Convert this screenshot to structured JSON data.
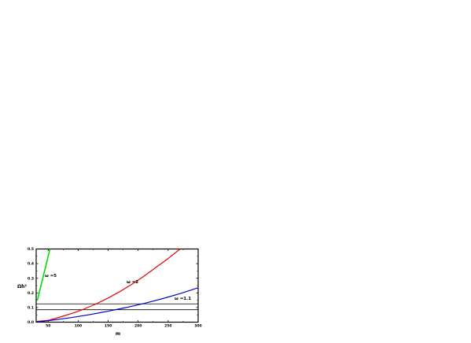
{
  "chart_data": {
    "type": "line",
    "title": "",
    "xlabel": "m",
    "ylabel": "Ωh²",
    "xlim": [
      30,
      300
    ],
    "ylim": [
      0.0,
      0.5
    ],
    "xticks": [
      50,
      100,
      150,
      200,
      250,
      300
    ],
    "xtick_labels": [
      "50",
      "100",
      "150",
      "200",
      "250",
      "300"
    ],
    "yticks": [
      0.0,
      0.1,
      0.2,
      0.3,
      0.4,
      0.5
    ],
    "ytick_labels": [
      "0.0",
      "0.1",
      "0.2",
      "0.3",
      "0.4",
      "0.5"
    ],
    "grid": false,
    "series": [
      {
        "annotation": "ω =5",
        "color": "#00dd00",
        "x": [
          32,
          35,
          38,
          41,
          44,
          47,
          50,
          53
        ],
        "y": [
          0.15,
          0.2,
          0.25,
          0.3,
          0.35,
          0.4,
          0.45,
          0.5
        ]
      },
      {
        "annotation": "ω =2",
        "color": "#ee0000",
        "x": [
          30,
          50,
          70,
          90,
          110,
          130,
          150,
          170,
          190,
          210,
          230,
          250,
          270
        ],
        "y": [
          0.005,
          0.012,
          0.035,
          0.06,
          0.09,
          0.125,
          0.165,
          0.21,
          0.26,
          0.315,
          0.375,
          0.435,
          0.5
        ]
      },
      {
        "annotation": "ω =1.1",
        "color": "#0000cc",
        "x": [
          30,
          60,
          90,
          120,
          150,
          180,
          210,
          240,
          270,
          300
        ],
        "y": [
          0.0,
          0.015,
          0.032,
          0.052,
          0.075,
          0.1,
          0.128,
          0.16,
          0.195,
          0.235
        ]
      }
    ],
    "hlines": [
      {
        "y": 0.085,
        "color": "#000000"
      },
      {
        "y": 0.125,
        "color": "#000000"
      }
    ]
  }
}
